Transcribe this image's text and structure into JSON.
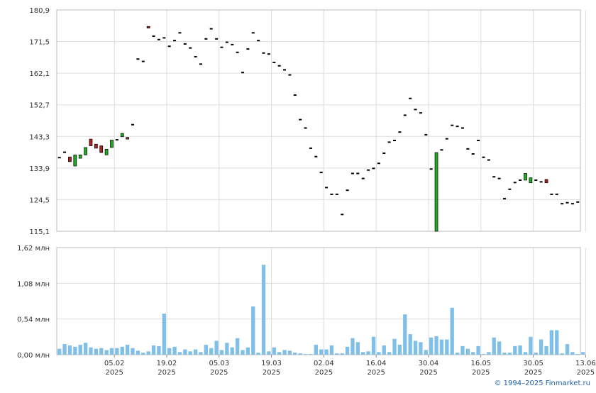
{
  "copyright": "© 1994–2025 Finmarket.ru",
  "chart_data": [
    {
      "type": "candlestick",
      "title": "",
      "ylim": [
        115.1,
        180.9
      ],
      "y_tick_labels": [
        "180,9",
        "171,5",
        "162,1",
        "152,7",
        "143,3",
        "133,9",
        "124,5",
        "115,1"
      ],
      "y_ticks": [
        180.9,
        171.5,
        162.1,
        152.7,
        143.3,
        133.9,
        124.5,
        115.1
      ],
      "x_tick_labels": [
        {
          "date": "05.02",
          "year": "2025"
        },
        {
          "date": "19.02",
          "year": "2025"
        },
        {
          "date": "05.03",
          "year": "2025"
        },
        {
          "date": "19.03",
          "year": "2025"
        },
        {
          "date": "02.04",
          "year": "2025"
        },
        {
          "date": "16.04",
          "year": "2025"
        },
        {
          "date": "30.04",
          "year": "2025"
        },
        {
          "date": "16.05",
          "year": "2025"
        },
        {
          "date": "30.05",
          "year": "2025"
        },
        {
          "date": "13.06",
          "year": "2025"
        }
      ],
      "x_tick_index": [
        10,
        20,
        30,
        40,
        50,
        60,
        70,
        80,
        90,
        100
      ],
      "colors": {
        "up": "#22aa22",
        "down": "#aa2222",
        "flat": "#000000"
      },
      "candles": [
        {
          "o": 137.2,
          "c": 137.2
        },
        {
          "o": 138.8,
          "c": 138.8
        },
        {
          "o": 137.2,
          "c": 135.8
        },
        {
          "o": 134.5,
          "c": 137.8
        },
        {
          "o": 136.8,
          "c": 137.8
        },
        {
          "o": 137.8,
          "c": 140.0
        },
        {
          "o": 142.5,
          "c": 140.5
        },
        {
          "o": 141.0,
          "c": 139.8
        },
        {
          "o": 140.5,
          "c": 138.5
        },
        {
          "o": 137.8,
          "c": 139.5
        },
        {
          "o": 140.0,
          "c": 142.2
        },
        {
          "o": 142.5,
          "c": 142.5
        },
        {
          "o": 143.2,
          "c": 144.2
        },
        {
          "o": 143.0,
          "c": 142.5
        },
        {
          "o": 147.0,
          "c": 147.0
        },
        {
          "o": 166.5,
          "c": 166.5
        },
        {
          "o": 165.8,
          "c": 165.8
        },
        {
          "o": 176.0,
          "c": 175.5
        },
        {
          "o": 173.3,
          "c": 173.3
        },
        {
          "o": 172.3,
          "c": 172.3
        },
        {
          "o": 172.8,
          "c": 172.8
        },
        {
          "o": 170.3,
          "c": 170.3
        },
        {
          "o": 172.0,
          "c": 172.0
        },
        {
          "o": 174.3,
          "c": 174.3
        },
        {
          "o": 171.0,
          "c": 171.0
        },
        {
          "o": 169.8,
          "c": 169.8
        },
        {
          "o": 167.2,
          "c": 167.2
        },
        {
          "o": 165.0,
          "c": 165.0
        },
        {
          "o": 172.5,
          "c": 172.5
        },
        {
          "o": 175.5,
          "c": 175.5
        },
        {
          "o": 172.5,
          "c": 172.5
        },
        {
          "o": 170.0,
          "c": 170.0
        },
        {
          "o": 171.5,
          "c": 171.5
        },
        {
          "o": 170.8,
          "c": 170.8
        },
        {
          "o": 168.5,
          "c": 168.5
        },
        {
          "o": 162.5,
          "c": 162.5
        },
        {
          "o": 169.5,
          "c": 169.5
        },
        {
          "o": 174.3,
          "c": 174.3
        },
        {
          "o": 172.0,
          "c": 172.0
        },
        {
          "o": 168.3,
          "c": 168.3
        },
        {
          "o": 168.0,
          "c": 168.0
        },
        {
          "o": 165.5,
          "c": 165.5
        },
        {
          "o": 164.5,
          "c": 164.5
        },
        {
          "o": 163.3,
          "c": 163.3
        },
        {
          "o": 161.8,
          "c": 161.8
        },
        {
          "o": 155.8,
          "c": 155.8
        },
        {
          "o": 148.5,
          "c": 148.5
        },
        {
          "o": 146.0,
          "c": 146.0
        },
        {
          "o": 140.0,
          "c": 140.0
        },
        {
          "o": 137.5,
          "c": 137.5
        },
        {
          "o": 132.8,
          "c": 132.8
        },
        {
          "o": 128.3,
          "c": 128.3
        },
        {
          "o": 126.3,
          "c": 126.3
        },
        {
          "o": 126.3,
          "c": 126.3
        },
        {
          "o": 120.3,
          "c": 120.3
        },
        {
          "o": 127.5,
          "c": 127.5
        },
        {
          "o": 132.5,
          "c": 132.5
        },
        {
          "o": 132.5,
          "c": 132.5
        },
        {
          "o": 131.0,
          "c": 131.0
        },
        {
          "o": 133.5,
          "c": 133.5
        },
        {
          "o": 134.0,
          "c": 134.0
        },
        {
          "o": 135.5,
          "c": 135.5
        },
        {
          "o": 138.5,
          "c": 138.5
        },
        {
          "o": 141.8,
          "c": 141.8
        },
        {
          "o": 142.3,
          "c": 142.3
        },
        {
          "o": 144.8,
          "c": 144.8
        },
        {
          "o": 149.8,
          "c": 149.8
        },
        {
          "o": 154.8,
          "c": 154.8
        },
        {
          "o": 151.5,
          "c": 151.5
        },
        {
          "o": 150.5,
          "c": 150.5
        },
        {
          "o": 144.0,
          "c": 144.0
        },
        {
          "o": 133.8,
          "c": 133.8
        },
        {
          "o": 115.1,
          "c": 138.5
        },
        {
          "o": 139.5,
          "c": 139.5
        },
        {
          "o": 142.8,
          "c": 142.8
        },
        {
          "o": 146.8,
          "c": 146.8
        },
        {
          "o": 146.5,
          "c": 146.5
        },
        {
          "o": 146.0,
          "c": 146.0
        },
        {
          "o": 139.8,
          "c": 139.8
        },
        {
          "o": 138.3,
          "c": 138.3
        },
        {
          "o": 142.3,
          "c": 142.3
        },
        {
          "o": 137.3,
          "c": 137.3
        },
        {
          "o": 136.5,
          "c": 136.5
        },
        {
          "o": 131.5,
          "c": 131.5
        },
        {
          "o": 131.0,
          "c": 131.0
        },
        {
          "o": 125.0,
          "c": 125.0
        },
        {
          "o": 127.8,
          "c": 127.8
        },
        {
          "o": 129.8,
          "c": 129.8
        },
        {
          "o": 130.5,
          "c": 130.5
        },
        {
          "o": 130.3,
          "c": 132.3
        },
        {
          "o": 129.5,
          "c": 131.0
        },
        {
          "o": 130.5,
          "c": 130.5
        },
        {
          "o": 130.0,
          "c": 130.0
        },
        {
          "o": 130.5,
          "c": 129.5
        },
        {
          "o": 126.3,
          "c": 126.3
        },
        {
          "o": 126.3,
          "c": 126.3
        },
        {
          "o": 123.5,
          "c": 123.5
        },
        {
          "o": 123.8,
          "c": 123.8
        },
        {
          "o": 123.5,
          "c": 123.5
        },
        {
          "o": 124.0,
          "c": 124.0
        }
      ]
    },
    {
      "type": "bar",
      "title": "",
      "ylim": [
        0,
        1.62
      ],
      "y_ticks": [
        0,
        0.54,
        1.08,
        1.62
      ],
      "y_tick_labels": [
        "0,00 млн",
        "0,54 млн",
        "1,08 млн",
        "1,62 млн"
      ],
      "color": "#7fbfe8",
      "values": [
        0.09,
        0.16,
        0.14,
        0.12,
        0.15,
        0.18,
        0.11,
        0.09,
        0.1,
        0.07,
        0.1,
        0.1,
        0.12,
        0.15,
        0.1,
        0.06,
        0.03,
        0.05,
        0.14,
        0.13,
        0.62,
        0.1,
        0.12,
        0.04,
        0.08,
        0.05,
        0.08,
        0.04,
        0.15,
        0.1,
        0.21,
        0.07,
        0.18,
        0.11,
        0.25,
        0.07,
        0.11,
        0.73,
        0.03,
        1.36,
        0.05,
        0.11,
        0.04,
        0.07,
        0.06,
        0.03,
        0.02,
        0.01,
        0.01,
        0.15,
        0.08,
        0.08,
        0.14,
        0.02,
        0.02,
        0.12,
        0.25,
        0.19,
        0.04,
        0.05,
        0.27,
        0.04,
        0.14,
        0.04,
        0.24,
        0.15,
        0.61,
        0.31,
        0.21,
        0.19,
        0.07,
        0.26,
        0.28,
        0.23,
        0.23,
        0.71,
        0.03,
        0.13,
        0.09,
        0.04,
        0.13,
        0.01,
        0.04,
        0.26,
        0.2,
        0.03,
        0.03,
        0.13,
        0.14,
        0.04,
        0.27,
        0.03,
        0.23,
        0.13,
        0.37,
        0.37,
        0.02,
        0.16,
        0.04,
        0.01,
        0.04
      ]
    }
  ]
}
